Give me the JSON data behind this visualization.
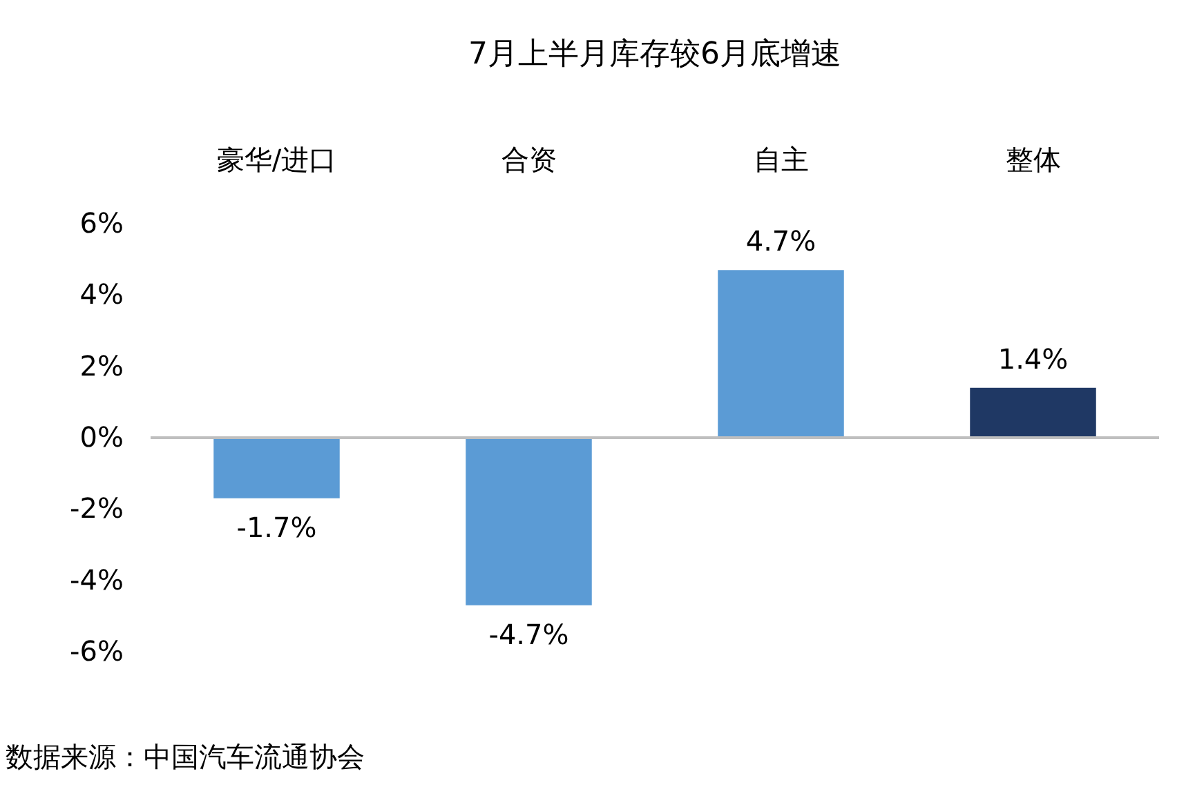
{
  "chart_data": {
    "type": "bar",
    "title": "7月上半月库存较6月底增速",
    "categories": [
      "豪华/进口",
      "合资",
      "自主",
      "整体"
    ],
    "values": [
      -1.7,
      -4.7,
      4.7,
      1.4
    ],
    "colors": [
      "#5b9bd5",
      "#5b9bd5",
      "#5b9bd5",
      "#1f3864"
    ],
    "value_labels": [
      "-1.7%",
      "-4.7%",
      "4.7%",
      "1.4%"
    ],
    "ylim": [
      -6,
      6
    ],
    "yticks": [
      {
        "value": -6,
        "label": "-6%"
      },
      {
        "value": -4,
        "label": "-4%"
      },
      {
        "value": -2,
        "label": "-2%"
      },
      {
        "value": 0,
        "label": "0%"
      },
      {
        "value": 2,
        "label": "2%"
      },
      {
        "value": 4,
        "label": "4%"
      },
      {
        "value": 6,
        "label": "6%"
      }
    ],
    "ref_lines": [
      {
        "axis": "y",
        "value": 0,
        "color": "#bfbfbf"
      }
    ],
    "grid": false,
    "annotations": [
      "数据来源：中国汽车流通协会"
    ]
  }
}
